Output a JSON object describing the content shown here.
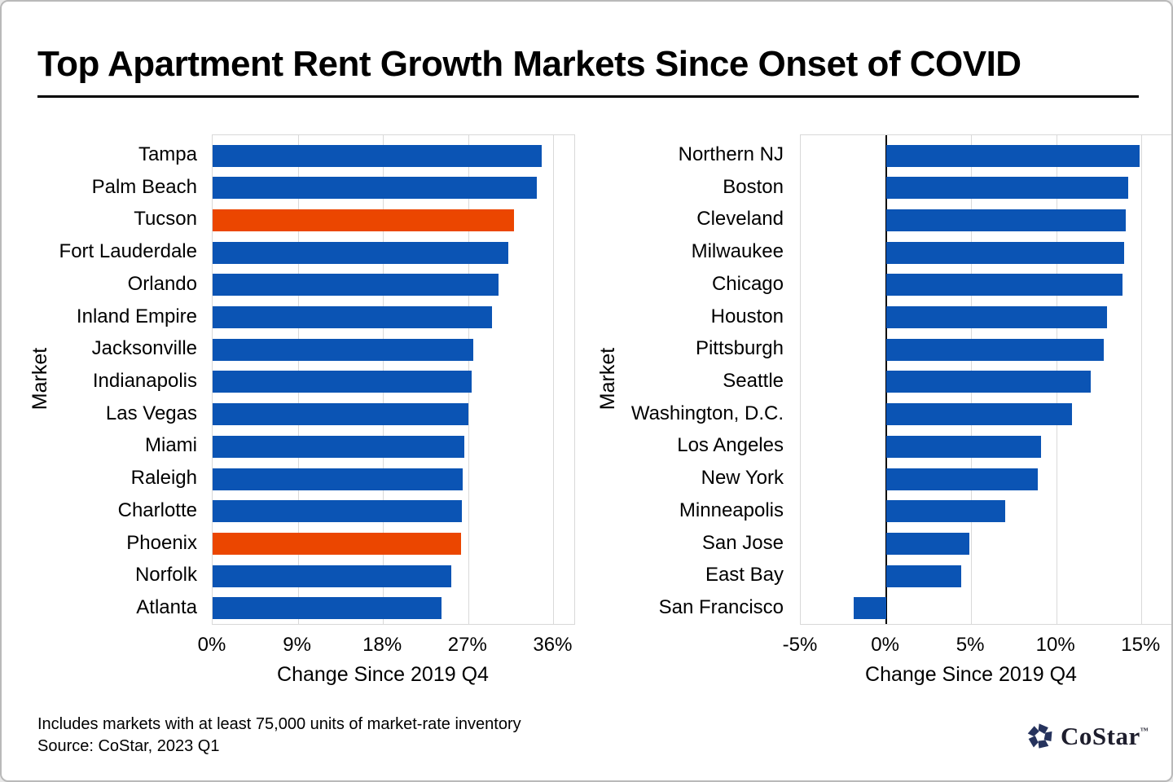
{
  "title": "Top Apartment Rent Growth Markets Since Onset of COVID",
  "footnote": {
    "line1": "Includes markets with at least 75,000 units of market-rate inventory",
    "line2": "Source: CoStar, 2023 Q1"
  },
  "logo": {
    "text": "CoStar",
    "tm": "™",
    "icon": "costar-pinwheel-icon"
  },
  "colors": {
    "bar_blue": "#0B54B4",
    "bar_orange": "#EB4600",
    "gridline": "#D9D9D9",
    "zero_line": "#000000",
    "logo_navy": "#26335D"
  },
  "chart_data": [
    {
      "type": "bar",
      "orientation": "horizontal",
      "categories": [
        "Tampa",
        "Palm Beach",
        "Tucson",
        "Fort Lauderdale",
        "Orlando",
        "Inland Empire",
        "Jacksonville",
        "Indianapolis",
        "Las Vegas",
        "Miami",
        "Raleigh",
        "Charlotte",
        "Phoenix",
        "Norfolk",
        "Atlanta"
      ],
      "values": [
        34.8,
        34.2,
        31.8,
        31.2,
        30.2,
        29.5,
        27.5,
        27.4,
        27.0,
        26.6,
        26.4,
        26.3,
        26.2,
        25.2,
        24.2
      ],
      "highlight_categories": [
        "Tucson",
        "Phoenix"
      ],
      "xlabel": "Change Since 2019 Q4",
      "ylabel": "Market",
      "x_ticks": [
        0,
        9,
        18,
        27,
        36
      ],
      "x_tick_labels": [
        "0%",
        "9%",
        "18%",
        "27%",
        "36%"
      ],
      "xlim": [
        0,
        38.2
      ],
      "grid": true,
      "zero_line": false
    },
    {
      "type": "bar",
      "orientation": "horizontal",
      "categories": [
        "Northern NJ",
        "Boston",
        "Cleveland",
        "Milwaukee",
        "Chicago",
        "Houston",
        "Pittsburgh",
        "Seattle",
        "Washington, D.C.",
        "Los Angeles",
        "New York",
        "Minneapolis",
        "San Jose",
        "East Bay",
        "San Francisco"
      ],
      "values": [
        14.9,
        14.2,
        14.1,
        14.0,
        13.9,
        13.0,
        12.8,
        12.0,
        10.9,
        9.1,
        8.9,
        7.0,
        4.9,
        4.4,
        -1.9
      ],
      "highlight_categories": [],
      "xlabel": "Change Since 2019 Q4",
      "ylabel": "Market",
      "x_ticks": [
        -5,
        0,
        5,
        10,
        15
      ],
      "x_tick_labels": [
        "-5%",
        "0%",
        "5%",
        "10%",
        "15%"
      ],
      "xlim": [
        -5,
        16.9
      ],
      "grid": true,
      "zero_line": true
    }
  ]
}
